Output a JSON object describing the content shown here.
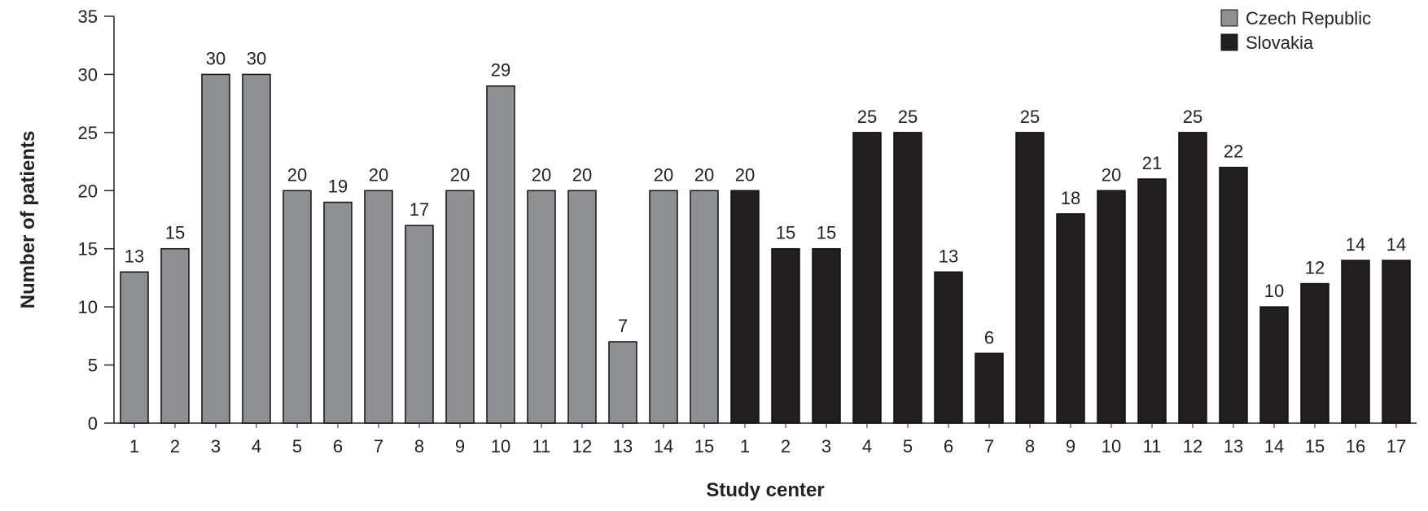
{
  "chart_data": {
    "type": "bar",
    "title": "",
    "xlabel": "Study center",
    "ylabel": "Number of patients",
    "ylim": [
      0,
      35
    ],
    "yticks": [
      0,
      5,
      10,
      15,
      20,
      25,
      30,
      35
    ],
    "grid": false,
    "legend_position": "top-right",
    "series": [
      {
        "name": "Czech Republic",
        "color": "#8f9094",
        "categories": [
          "1",
          "2",
          "3",
          "4",
          "5",
          "6",
          "7",
          "8",
          "9",
          "10",
          "11",
          "12",
          "13",
          "14",
          "15"
        ],
        "values": [
          13,
          15,
          30,
          30,
          20,
          19,
          20,
          17,
          20,
          29,
          20,
          20,
          7,
          20,
          20
        ]
      },
      {
        "name": "Slovakia",
        "color": "#231f20",
        "categories": [
          "1",
          "2",
          "3",
          "4",
          "5",
          "6",
          "7",
          "8",
          "9",
          "10",
          "11",
          "12",
          "13",
          "14",
          "15",
          "16",
          "17"
        ],
        "values": [
          20,
          15,
          15,
          25,
          25,
          13,
          6,
          25,
          18,
          20,
          21,
          25,
          22,
          10,
          12,
          14,
          14
        ]
      }
    ]
  }
}
